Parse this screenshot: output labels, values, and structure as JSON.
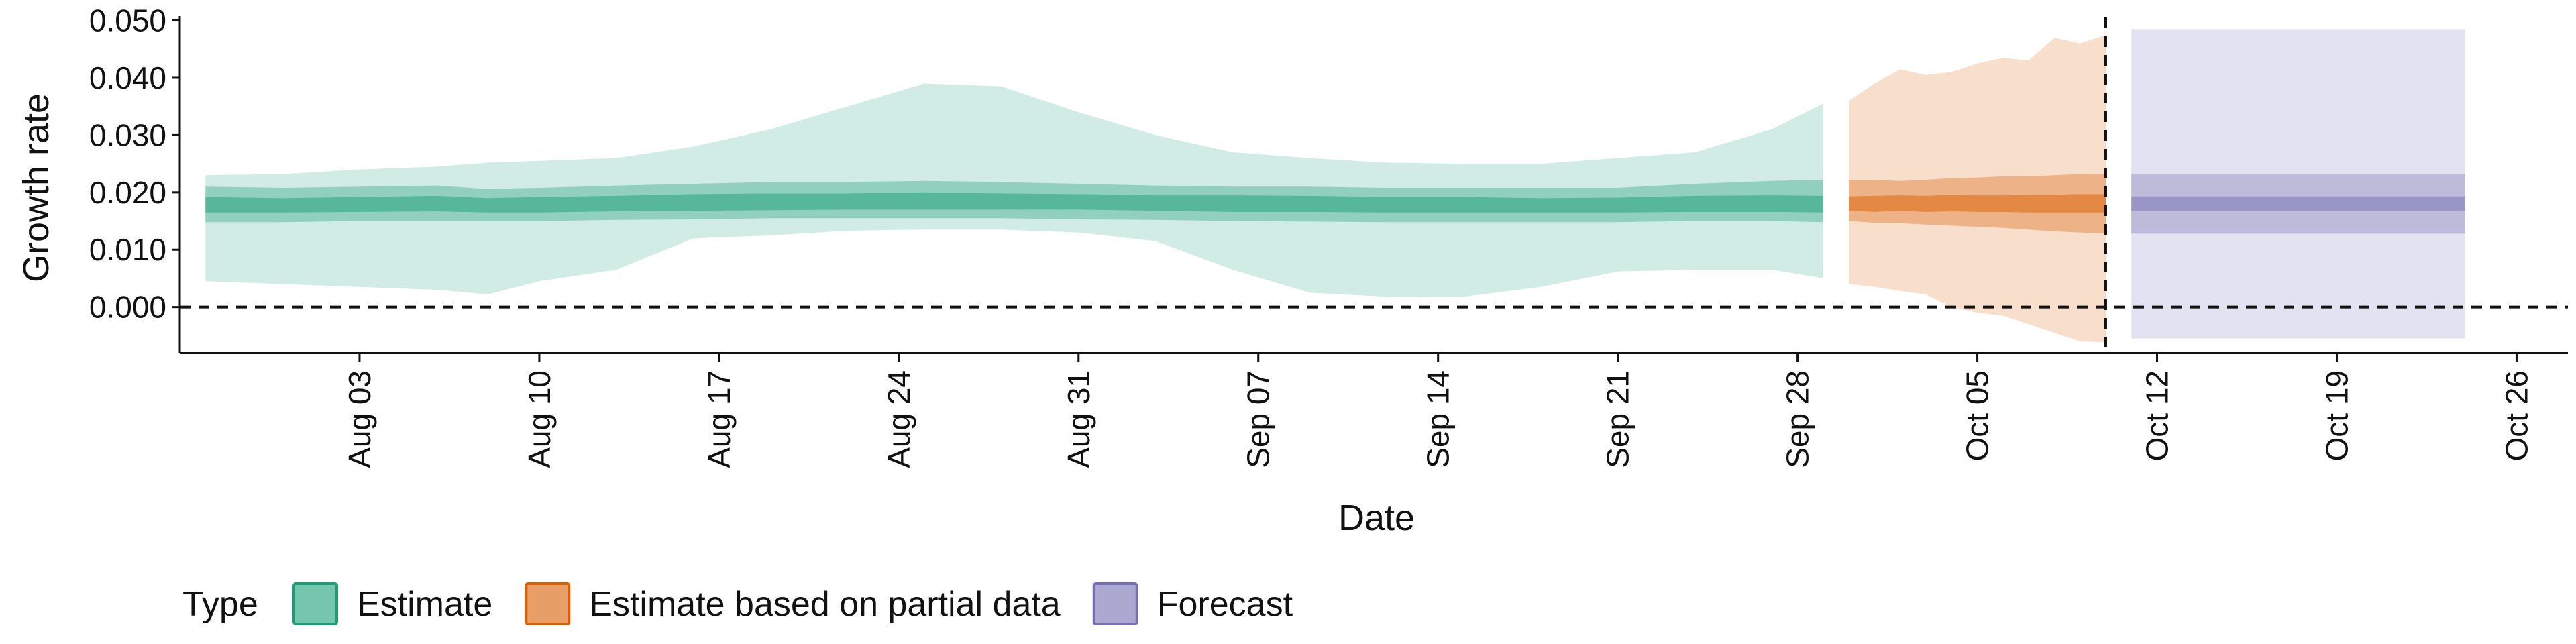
{
  "chart_data": {
    "type": "area",
    "xlabel": "Date",
    "ylabel": "Growth rate",
    "xlim": [
      "2020-07-27",
      "2020-10-28"
    ],
    "ylim": [
      -0.008,
      0.051
    ],
    "y_ticks": [
      0.0,
      0.01,
      0.02,
      0.03,
      0.04,
      0.05
    ],
    "y_tick_labels": [
      "0.000",
      "0.010",
      "0.020",
      "0.030",
      "0.040",
      "0.050"
    ],
    "x_ticks": [
      "2020-08-03",
      "2020-08-10",
      "2020-08-17",
      "2020-08-24",
      "2020-08-31",
      "2020-09-07",
      "2020-09-14",
      "2020-09-21",
      "2020-09-28",
      "2020-10-05",
      "2020-10-12",
      "2020-10-19",
      "2020-10-26"
    ],
    "x_tick_labels": [
      "Aug 03",
      "Aug 10",
      "Aug 17",
      "Aug 24",
      "Aug 31",
      "Sep 07",
      "Sep 14",
      "Sep 21",
      "Sep 28",
      "Oct 05",
      "Oct 12",
      "Oct 19",
      "Oct 26"
    ],
    "hline": 0.0,
    "vline": "2020-10-10",
    "grid": false,
    "legend": {
      "title": "Type",
      "placement": "bottom-left",
      "entries": [
        "Estimate",
        "Estimate based on partial data",
        "Forecast"
      ]
    },
    "series": [
      {
        "name": "Estimate",
        "color": "#1b9e77",
        "x": [
          "2020-07-28",
          "2020-07-31",
          "2020-08-03",
          "2020-08-06",
          "2020-08-08",
          "2020-08-10",
          "2020-08-13",
          "2020-08-16",
          "2020-08-19",
          "2020-08-22",
          "2020-08-25",
          "2020-08-28",
          "2020-08-31",
          "2020-09-03",
          "2020-09-06",
          "2020-09-09",
          "2020-09-12",
          "2020-09-15",
          "2020-09-18",
          "2020-09-21",
          "2020-09-24",
          "2020-09-27",
          "2020-09-29"
        ],
        "median": [
          0.0178,
          0.0175,
          0.0178,
          0.018,
          0.0176,
          0.0178,
          0.018,
          0.0182,
          0.0182,
          0.0182,
          0.0184,
          0.0183,
          0.0182,
          0.018,
          0.018,
          0.018,
          0.0178,
          0.0178,
          0.0177,
          0.0178,
          0.018,
          0.018,
          0.0179
        ],
        "low_50": [
          0.0165,
          0.0165,
          0.0166,
          0.0167,
          0.0165,
          0.0165,
          0.0167,
          0.0168,
          0.0169,
          0.017,
          0.017,
          0.017,
          0.017,
          0.0168,
          0.0166,
          0.0166,
          0.0165,
          0.0165,
          0.0165,
          0.0165,
          0.0166,
          0.0166,
          0.0165
        ],
        "high_50": [
          0.0192,
          0.019,
          0.0192,
          0.0194,
          0.019,
          0.0192,
          0.0194,
          0.0197,
          0.0198,
          0.0198,
          0.02,
          0.0198,
          0.0197,
          0.0195,
          0.0195,
          0.0194,
          0.0192,
          0.0192,
          0.019,
          0.0191,
          0.0194,
          0.0195,
          0.0194
        ],
        "low_90": [
          0.0148,
          0.0148,
          0.015,
          0.015,
          0.015,
          0.015,
          0.0152,
          0.0153,
          0.0155,
          0.0155,
          0.0155,
          0.0155,
          0.0153,
          0.0152,
          0.015,
          0.0149,
          0.0148,
          0.0148,
          0.0148,
          0.0148,
          0.015,
          0.015,
          0.0148
        ],
        "high_90": [
          0.021,
          0.0208,
          0.021,
          0.0212,
          0.0206,
          0.0208,
          0.0212,
          0.0215,
          0.0218,
          0.0218,
          0.022,
          0.0218,
          0.0215,
          0.0212,
          0.021,
          0.021,
          0.0208,
          0.0208,
          0.0208,
          0.0208,
          0.0215,
          0.022,
          0.0222
        ],
        "low_outer": [
          0.0045,
          0.004,
          0.0035,
          0.003,
          0.0022,
          0.0045,
          0.0065,
          0.012,
          0.0125,
          0.0133,
          0.0135,
          0.0135,
          0.013,
          0.0115,
          0.0065,
          0.0025,
          0.0018,
          0.0018,
          0.0035,
          0.0062,
          0.0065,
          0.0065,
          0.005
        ],
        "high_outer": [
          0.023,
          0.0232,
          0.024,
          0.0245,
          0.0252,
          0.0255,
          0.026,
          0.028,
          0.031,
          0.035,
          0.039,
          0.0385,
          0.034,
          0.03,
          0.027,
          0.026,
          0.0252,
          0.025,
          0.025,
          0.026,
          0.027,
          0.031,
          0.0355
        ]
      },
      {
        "name": "Estimate based on partial data",
        "color": "#d95f02",
        "x": [
          "2020-09-30",
          "2020-10-01",
          "2020-10-02",
          "2020-10-03",
          "2020-10-04",
          "2020-10-05",
          "2020-10-06",
          "2020-10-07",
          "2020-10-08",
          "2020-10-09",
          "2020-10-10"
        ],
        "median": [
          0.018,
          0.018,
          0.0181,
          0.0179,
          0.0181,
          0.018,
          0.018,
          0.018,
          0.018,
          0.018,
          0.018
        ],
        "low_50": [
          0.0168,
          0.0166,
          0.0168,
          0.0166,
          0.0167,
          0.0166,
          0.0166,
          0.0165,
          0.0165,
          0.0165,
          0.0165
        ],
        "high_50": [
          0.0193,
          0.0194,
          0.0195,
          0.0194,
          0.0196,
          0.0195,
          0.0195,
          0.0196,
          0.0196,
          0.0197,
          0.0197
        ],
        "low_90": [
          0.015,
          0.0147,
          0.0146,
          0.0144,
          0.0142,
          0.014,
          0.0138,
          0.0135,
          0.0132,
          0.013,
          0.0128
        ],
        "high_90": [
          0.0222,
          0.0222,
          0.022,
          0.0222,
          0.0225,
          0.0226,
          0.0228,
          0.0228,
          0.023,
          0.0232,
          0.0232
        ],
        "low_outer": [
          0.004,
          0.0035,
          0.0028,
          0.0022,
          0.0,
          -0.001,
          -0.0015,
          -0.003,
          -0.0045,
          -0.006,
          -0.0062
        ],
        "high_outer": [
          0.036,
          0.039,
          0.0415,
          0.0405,
          0.041,
          0.0425,
          0.0435,
          0.043,
          0.047,
          0.046,
          0.0475
        ]
      },
      {
        "name": "Forecast",
        "color": "#7570b3",
        "x": [
          "2020-10-11",
          "2020-10-24"
        ],
        "median": [
          0.018,
          0.018
        ],
        "low_50": [
          0.0168,
          0.0168
        ],
        "high_50": [
          0.0193,
          0.0193
        ],
        "low_90": [
          0.0128,
          0.0128
        ],
        "high_90": [
          0.0232,
          0.0232
        ],
        "low_outer": [
          -0.0055,
          -0.0055
        ],
        "high_outer": [
          0.0485,
          0.0485
        ]
      }
    ]
  }
}
